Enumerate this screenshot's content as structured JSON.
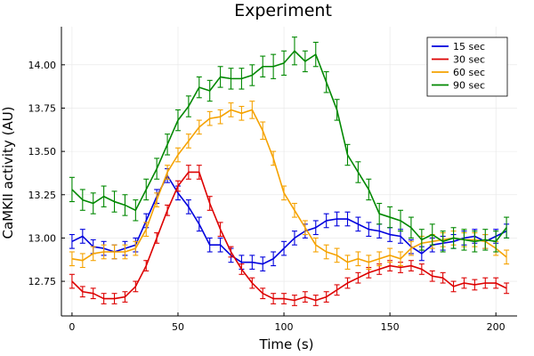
{
  "chart_data": {
    "type": "line",
    "title": "Experiment",
    "xlabel": "Time (s)",
    "ylabel": "CaMKII activity (AU)",
    "xlim": [
      -5,
      210
    ],
    "ylim": [
      12.55,
      14.22
    ],
    "xticks": [
      0,
      50,
      100,
      150,
      200
    ],
    "yticks": [
      12.75,
      13.0,
      13.25,
      13.5,
      13.75,
      14.0
    ],
    "ytick_labels": [
      "12.75",
      "13.00",
      "13.25",
      "13.50",
      "13.75",
      "14.00"
    ],
    "grid": true,
    "legend_position": "top-right",
    "x": [
      0,
      5,
      10,
      15,
      20,
      25,
      30,
      35,
      40,
      45,
      50,
      55,
      60,
      65,
      70,
      75,
      80,
      85,
      90,
      95,
      100,
      105,
      110,
      115,
      120,
      125,
      130,
      135,
      140,
      145,
      150,
      155,
      160,
      165,
      170,
      175,
      180,
      185,
      190,
      195,
      200,
      205
    ],
    "series": [
      {
        "name": "15 sec",
        "color": "#0000dd",
        "values": [
          12.98,
          13.01,
          12.95,
          12.94,
          12.92,
          12.94,
          12.96,
          13.1,
          13.24,
          13.36,
          13.26,
          13.18,
          13.08,
          12.96,
          12.96,
          12.9,
          12.86,
          12.86,
          12.85,
          12.88,
          12.94,
          13.0,
          13.04,
          13.06,
          13.1,
          13.11,
          13.11,
          13.08,
          13.05,
          13.04,
          13.02,
          13.01,
          12.95,
          12.91,
          12.96,
          12.97,
          12.98,
          13.0,
          13.01,
          12.98,
          13.01,
          13.04
        ],
        "errors": [
          0.04,
          0.04,
          0.04,
          0.04,
          0.04,
          0.04,
          0.04,
          0.04,
          0.04,
          0.04,
          0.04,
          0.04,
          0.04,
          0.04,
          0.04,
          0.04,
          0.04,
          0.04,
          0.04,
          0.04,
          0.04,
          0.04,
          0.04,
          0.04,
          0.04,
          0.04,
          0.04,
          0.04,
          0.04,
          0.04,
          0.04,
          0.04,
          0.04,
          0.04,
          0.04,
          0.04,
          0.04,
          0.04,
          0.04,
          0.04,
          0.04,
          0.04
        ]
      },
      {
        "name": "30 sec",
        "color": "#dd0000",
        "values": [
          12.75,
          12.69,
          12.68,
          12.65,
          12.65,
          12.66,
          12.72,
          12.84,
          13.0,
          13.16,
          13.3,
          13.38,
          13.38,
          13.2,
          13.05,
          12.92,
          12.82,
          12.74,
          12.68,
          12.65,
          12.65,
          12.64,
          12.66,
          12.64,
          12.66,
          12.7,
          12.74,
          12.77,
          12.8,
          12.82,
          12.84,
          12.83,
          12.84,
          12.82,
          12.78,
          12.77,
          12.72,
          12.74,
          12.73,
          12.74,
          12.74,
          12.71
        ],
        "errors": [
          0.04,
          0.03,
          0.03,
          0.03,
          0.03,
          0.03,
          0.03,
          0.03,
          0.03,
          0.03,
          0.03,
          0.04,
          0.04,
          0.04,
          0.04,
          0.03,
          0.03,
          0.03,
          0.03,
          0.03,
          0.03,
          0.03,
          0.03,
          0.03,
          0.03,
          0.03,
          0.03,
          0.03,
          0.03,
          0.03,
          0.03,
          0.03,
          0.03,
          0.03,
          0.03,
          0.03,
          0.03,
          0.03,
          0.03,
          0.03,
          0.03,
          0.03
        ]
      },
      {
        "name": "60 sec",
        "color": "#f5a200",
        "values": [
          12.88,
          12.87,
          12.91,
          12.92,
          12.92,
          12.92,
          12.94,
          13.05,
          13.22,
          13.38,
          13.48,
          13.56,
          13.64,
          13.69,
          13.7,
          13.74,
          13.72,
          13.74,
          13.62,
          13.46,
          13.26,
          13.16,
          13.06,
          12.96,
          12.92,
          12.9,
          12.86,
          12.88,
          12.86,
          12.88,
          12.9,
          12.88,
          12.94,
          12.97,
          12.98,
          12.99,
          13.0,
          12.99,
          12.99,
          12.98,
          12.94,
          12.89
        ],
        "errors": [
          0.04,
          0.04,
          0.04,
          0.04,
          0.04,
          0.04,
          0.04,
          0.04,
          0.04,
          0.04,
          0.04,
          0.04,
          0.04,
          0.04,
          0.04,
          0.04,
          0.04,
          0.05,
          0.05,
          0.04,
          0.04,
          0.04,
          0.04,
          0.04,
          0.04,
          0.04,
          0.04,
          0.04,
          0.04,
          0.04,
          0.04,
          0.04,
          0.04,
          0.04,
          0.04,
          0.04,
          0.04,
          0.04,
          0.04,
          0.04,
          0.04,
          0.04
        ]
      },
      {
        "name": "90 sec",
        "color": "#008800",
        "values": [
          13.28,
          13.22,
          13.2,
          13.24,
          13.21,
          13.19,
          13.16,
          13.28,
          13.4,
          13.54,
          13.68,
          13.76,
          13.87,
          13.85,
          13.93,
          13.92,
          13.92,
          13.94,
          13.99,
          13.99,
          14.01,
          14.08,
          14.02,
          14.06,
          13.9,
          13.74,
          13.48,
          13.38,
          13.28,
          13.14,
          13.12,
          13.1,
          13.06,
          12.99,
          13.02,
          12.98,
          13.0,
          12.99,
          12.98,
          12.99,
          12.98,
          13.06
        ],
        "errors": [
          0.07,
          0.06,
          0.06,
          0.06,
          0.06,
          0.06,
          0.06,
          0.06,
          0.06,
          0.06,
          0.06,
          0.06,
          0.06,
          0.06,
          0.06,
          0.06,
          0.06,
          0.06,
          0.06,
          0.07,
          0.07,
          0.08,
          0.06,
          0.07,
          0.06,
          0.06,
          0.06,
          0.06,
          0.06,
          0.06,
          0.06,
          0.06,
          0.06,
          0.06,
          0.06,
          0.06,
          0.06,
          0.06,
          0.06,
          0.06,
          0.06,
          0.06
        ]
      }
    ]
  }
}
